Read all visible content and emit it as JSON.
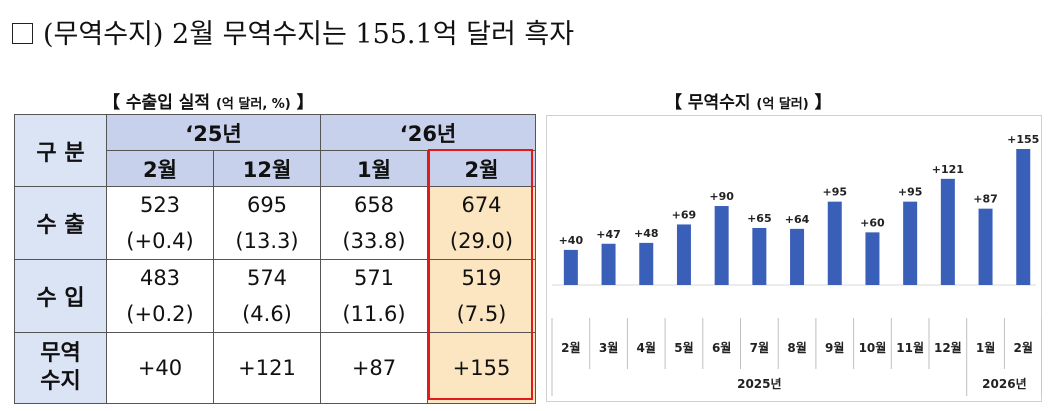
{
  "heading": "(무역수지) 2월 무역수지는 155.1억 달러 흑자",
  "table": {
    "title": "【 수출입 실적",
    "unit": "(억 달러, %)",
    "title_end": "】",
    "corner": "구 분",
    "years": [
      "‘25년",
      "‘26년"
    ],
    "months": [
      "2월",
      "12월",
      "1월",
      "2월"
    ],
    "rows": [
      {
        "label": "수 출",
        "values": [
          "523",
          "695",
          "658",
          "674"
        ],
        "changes": [
          "(+0.4)",
          "(13.3)",
          "(33.8)",
          "(29.0)"
        ]
      },
      {
        "label": "수 입",
        "values": [
          "483",
          "574",
          "571",
          "519"
        ],
        "changes": [
          "(+0.2)",
          "(4.6)",
          "(11.6)",
          "(7.5)"
        ]
      },
      {
        "label_lines": [
          "무역",
          "수지"
        ],
        "values": [
          "+40",
          "+121",
          "+87",
          "+155"
        ]
      }
    ]
  },
  "chart_data": {
    "type": "bar",
    "title": "【 무역수지",
    "unit": "(억 달러)",
    "title_end": "】",
    "categories": [
      "2월",
      "3월",
      "4월",
      "5월",
      "6월",
      "7월",
      "8월",
      "9월",
      "10월",
      "11월",
      "12월",
      "1월",
      "2월"
    ],
    "values": [
      40,
      47,
      48,
      69,
      90,
      65,
      64,
      95,
      60,
      95,
      121,
      87,
      155
    ],
    "labels": [
      "+40",
      "+47",
      "+48",
      "+69",
      "+90",
      "+65",
      "+64",
      "+95",
      "+60",
      "+95",
      "+121",
      "+87",
      "+155"
    ],
    "groups": [
      {
        "label": "2025년",
        "from": 0,
        "to": 10
      },
      {
        "label": "2026년",
        "from": 11,
        "to": 12
      }
    ],
    "ylim": [
      0,
      155
    ],
    "bar_color": "#3a5fb8",
    "grid": false
  }
}
